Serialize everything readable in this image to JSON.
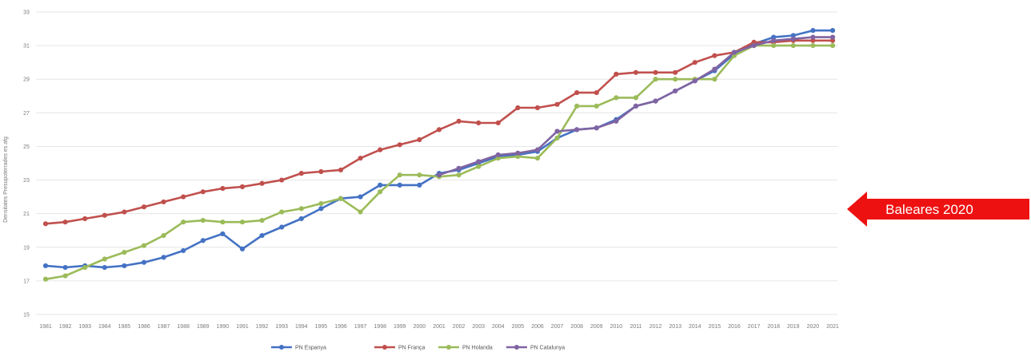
{
  "chart_data": {
    "type": "line",
    "ylabel": "Densitates Presupoterrades es afg",
    "xlabel": "",
    "ylim": [
      15,
      33
    ],
    "yticks": [
      15,
      17,
      19,
      21,
      23,
      25,
      27,
      29,
      31,
      33
    ],
    "grid": true,
    "legend_position": "bottom",
    "x": [
      "1981",
      "1982",
      "1983",
      "1984",
      "1985",
      "1986",
      "1987",
      "1988",
      "1989",
      "1990",
      "1991",
      "1992",
      "1993",
      "1994",
      "1995",
      "1996",
      "1997",
      "1998",
      "1999",
      "2000",
      "2001",
      "2002",
      "2003",
      "2004",
      "2005",
      "2006",
      "2007",
      "2008",
      "2009",
      "2010",
      "2011",
      "2012",
      "2013",
      "2014",
      "2015",
      "2016",
      "2017",
      "2018",
      "2019",
      "2020",
      "2021"
    ],
    "series": [
      {
        "name": "PN Espanya",
        "color": "#4472c4",
        "values": [
          17.9,
          17.8,
          17.9,
          17.8,
          17.9,
          18.1,
          18.4,
          18.8,
          19.4,
          19.8,
          18.9,
          19.7,
          20.2,
          20.7,
          21.3,
          21.9,
          22.0,
          22.7,
          22.7,
          22.7,
          23.4,
          23.6,
          24.0,
          24.4,
          24.5,
          24.7,
          25.5,
          26.0,
          26.1,
          26.6,
          27.4,
          27.7,
          28.3,
          28.9,
          29.5,
          30.5,
          31.1,
          31.5,
          31.6,
          31.9,
          31.9
        ]
      },
      {
        "name": "PN França",
        "color": "#c0504d",
        "values": [
          20.4,
          20.5,
          20.7,
          20.9,
          21.1,
          21.4,
          21.7,
          22.0,
          22.3,
          22.5,
          22.6,
          22.8,
          23.0,
          23.4,
          23.5,
          23.6,
          24.3,
          24.8,
          25.1,
          25.4,
          26.0,
          26.5,
          26.4,
          26.4,
          27.3,
          27.3,
          27.5,
          28.2,
          28.2,
          29.3,
          29.4,
          29.4,
          29.4,
          30.0,
          30.4,
          30.6,
          31.2,
          31.2,
          31.3,
          31.3,
          31.3
        ]
      },
      {
        "name": "PN Holanda",
        "color": "#9bbb59",
        "values": [
          17.1,
          17.3,
          17.8,
          18.3,
          18.7,
          19.1,
          19.7,
          20.5,
          20.6,
          20.5,
          20.5,
          20.6,
          21.1,
          21.3,
          21.6,
          21.9,
          21.1,
          22.3,
          23.3,
          23.3,
          23.2,
          23.3,
          23.8,
          24.3,
          24.4,
          24.3,
          25.5,
          27.4,
          27.4,
          27.9,
          27.9,
          29.0,
          29.0,
          29.0,
          29.0,
          30.4,
          31.0,
          31.0,
          31.0,
          31.0,
          31.0
        ]
      },
      {
        "name": "PN Catalunya",
        "color": "#8064a2",
        "values": [
          null,
          null,
          null,
          null,
          null,
          null,
          null,
          null,
          null,
          null,
          null,
          null,
          null,
          null,
          null,
          null,
          null,
          null,
          null,
          null,
          23.3,
          23.7,
          24.1,
          24.5,
          24.6,
          24.8,
          25.9,
          26.0,
          26.1,
          26.5,
          27.4,
          27.7,
          28.3,
          28.9,
          29.6,
          30.6,
          31.0,
          31.3,
          31.4,
          31.5,
          31.5
        ]
      }
    ]
  },
  "callout": {
    "label": "Baleares 2020",
    "color": "#ee1111"
  }
}
